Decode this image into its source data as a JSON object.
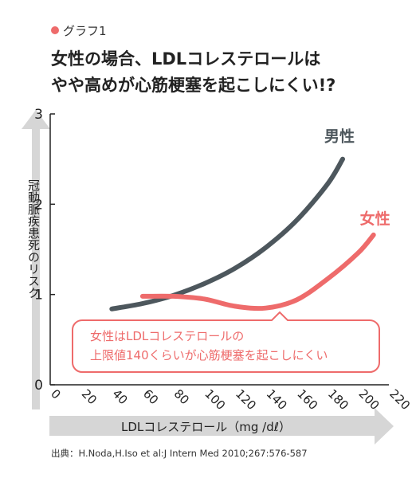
{
  "header": {
    "tag": "グラフ1",
    "title_line1": "女性の場合、LDLコレステロールは",
    "title_line2": "やや高めが心筋梗塞を起こしにくい!?"
  },
  "colors": {
    "male": "#4d575d",
    "female": "#ee6b6b",
    "accent": "#ee6b6b",
    "axis": "#222222",
    "arrow": "#d6d6d6"
  },
  "chart_data": {
    "type": "line",
    "xlabel": "LDLコレステロール（mg /dℓ）",
    "ylabel": "冠動脈疾患死のリスク",
    "xlim": [
      0,
      220
    ],
    "ylim": [
      0,
      3
    ],
    "x_ticks": [
      "0",
      "20",
      "40",
      "60",
      "80",
      "100",
      "120",
      "140",
      "160",
      "180",
      "200",
      "220"
    ],
    "y_ticks": [
      "0",
      "1",
      "2",
      "3"
    ],
    "grid": false,
    "series": [
      {
        "name": "男性",
        "color": "#4d575d",
        "x": [
          40,
          60,
          80,
          100,
          120,
          140,
          160,
          180,
          190
        ],
        "y": [
          0.84,
          0.9,
          0.99,
          1.12,
          1.29,
          1.52,
          1.82,
          2.22,
          2.5
        ]
      },
      {
        "name": "女性",
        "color": "#ee6b6b",
        "x": [
          60,
          80,
          100,
          120,
          140,
          160,
          180,
          200,
          210
        ],
        "y": [
          0.98,
          0.98,
          0.95,
          0.87,
          0.85,
          0.94,
          1.17,
          1.46,
          1.66
        ]
      }
    ],
    "annotation": {
      "line1": "女性はLDLコレステロールの",
      "line2": "上限値140くらいが心筋梗塞を起こしにくい"
    }
  },
  "footnote": "出典：H.Noda,H.Iso et al:J Intern Med 2010;267:576-587"
}
